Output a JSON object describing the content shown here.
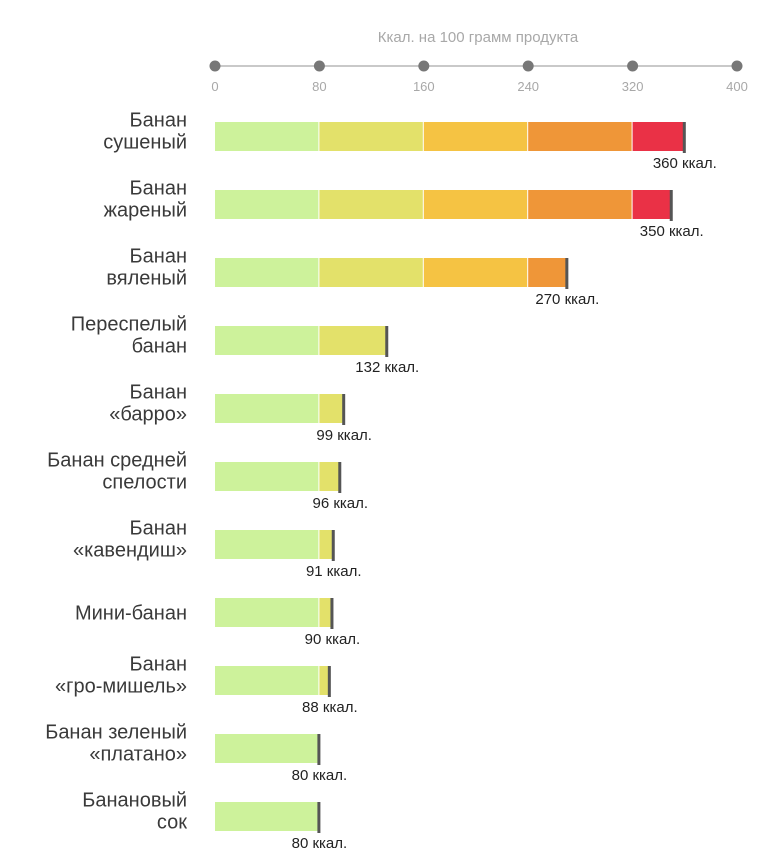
{
  "chart_data": {
    "type": "bar",
    "orientation": "horizontal",
    "title": "",
    "xlabel": "Ккал. на 100 грамм продукта",
    "ylabel": "",
    "xlim": [
      0,
      400
    ],
    "ticks": [
      "0",
      "80",
      "160",
      "240",
      "320",
      "400"
    ],
    "tick_values": [
      0,
      80,
      160,
      240,
      320,
      400
    ],
    "axis_position": "top",
    "grid": false,
    "band_colors": [
      "#cdf29b",
      "#e3e16a",
      "#f5c343",
      "#ef9638",
      "#ea3146"
    ],
    "end_marker_color": "#555555",
    "categories": [
      [
        "Банан",
        "сушеный"
      ],
      [
        "Банан",
        "жареный"
      ],
      [
        "Банан",
        "вяленый"
      ],
      [
        "Переспелый",
        "банан"
      ],
      [
        "Банан",
        "«барро»"
      ],
      [
        "Банан средней",
        "спелости"
      ],
      [
        "Банан",
        "«кавендиш»"
      ],
      [
        "Мини-банан"
      ],
      [
        "Банан",
        "«гро-мишель»"
      ],
      [
        "Банан зеленый",
        "«платано»"
      ],
      [
        "Банановый",
        "сок"
      ]
    ],
    "values": [
      360,
      350,
      270,
      132,
      99,
      96,
      91,
      90,
      88,
      80,
      80
    ],
    "value_labels": [
      "360 ккал.",
      "350 ккал.",
      "270 ккал.",
      "132 ккал.",
      "99 ккал.",
      "96 ккал.",
      "91 ккал.",
      "90 ккал.",
      "88 ккал.",
      "80 ккал.",
      "80 ккал."
    ]
  }
}
